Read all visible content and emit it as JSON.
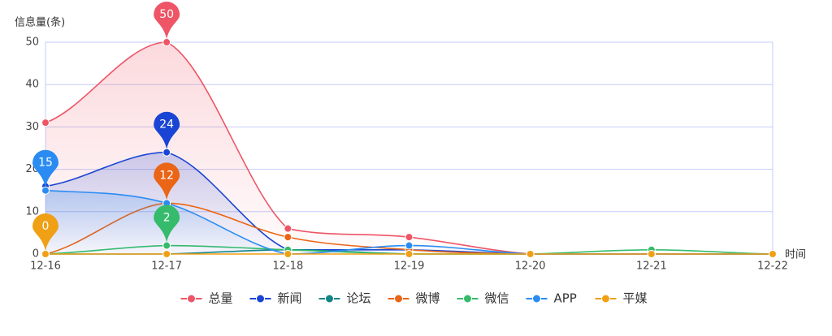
{
  "chart_data": {
    "type": "line",
    "y_label": "信息量(条)",
    "x_label": "时间",
    "x": [
      "12-16",
      "12-17",
      "12-18",
      "12-19",
      "12-20",
      "12-21",
      "12-22"
    ],
    "ylim": [
      0,
      50
    ],
    "yticks": [
      0,
      10,
      20,
      30,
      40,
      50
    ],
    "grid": true,
    "smooth": true,
    "legend": "bottom",
    "series": [
      {
        "name": "总量",
        "color": "#ee5566",
        "values": [
          31,
          50,
          6,
          4,
          0,
          0,
          0
        ],
        "area": true,
        "max_pin": true
      },
      {
        "name": "新闻",
        "color": "#1a45d4",
        "values": [
          16,
          24,
          1,
          1,
          0,
          0,
          0
        ],
        "area": true,
        "max_pin": true
      },
      {
        "name": "论坛",
        "color": "#138485",
        "values": [
          0,
          0,
          1,
          0,
          0,
          0,
          0
        ],
        "area": false,
        "max_pin": false
      },
      {
        "name": "微博",
        "color": "#ea6515",
        "values": [
          0,
          12,
          4,
          1,
          0,
          0,
          0
        ],
        "area": false,
        "max_pin": true
      },
      {
        "name": "微信",
        "color": "#35bb6b",
        "values": [
          0,
          2,
          1,
          0,
          0,
          1,
          0
        ],
        "area": false,
        "max_pin": true
      },
      {
        "name": "APP",
        "color": "#2a8cf2",
        "values": [
          15,
          12,
          0,
          2,
          0,
          0,
          0
        ],
        "area": true,
        "max_pin": true
      },
      {
        "name": "平媒",
        "color": "#f0a015",
        "values": [
          0,
          0,
          0,
          0,
          0,
          0,
          0
        ],
        "area": false,
        "max_pin": true
      }
    ]
  }
}
